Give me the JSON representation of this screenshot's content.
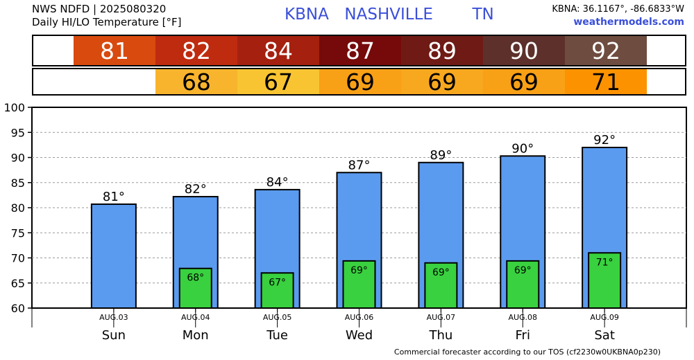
{
  "header": {
    "source_line": "NWS NDFD | 2025080320",
    "product_line": "Daily HI/LO Temperature [°F]",
    "station_line": "KBNA  NASHVILLE     TN",
    "coords": "KBNA: 36.1167°, -86.6833°W",
    "website": "weathermodels.com"
  },
  "footer": "Commercial forecaster according to our TOS (cf2230w0UKBNA0p230)",
  "hi_strip": [
    {
      "value": "81",
      "color": "#d84a0e"
    },
    {
      "value": "82",
      "color": "#bf2b0f"
    },
    {
      "value": "84",
      "color": "#a5200f"
    },
    {
      "value": "87",
      "color": "#760a0a"
    },
    {
      "value": "89",
      "color": "#6f1a14"
    },
    {
      "value": "90",
      "color": "#5e302b"
    },
    {
      "value": "92",
      "color": "#6e4c3f"
    }
  ],
  "lo_strip": [
    {
      "value": "68",
      "color": "#f8b42c"
    },
    {
      "value": "67",
      "color": "#f8c432"
    },
    {
      "value": "69",
      "color": "#f8a016"
    },
    {
      "value": "69",
      "color": "#f8a81e"
    },
    {
      "value": "69",
      "color": "#f8a016"
    },
    {
      "value": "71",
      "color": "#fd9200"
    }
  ],
  "colors": {
    "high_bar": "#5b9bef",
    "low_bar": "#39d13f",
    "axis": "#000000",
    "grid": "#9a9a9a"
  },
  "chart_data": {
    "type": "bar",
    "categories": [
      "Sun",
      "Mon",
      "Tue",
      "Wed",
      "Thu",
      "Fri",
      "Sat"
    ],
    "dates": [
      "AUG.03",
      "AUG.04",
      "AUG.05",
      "AUG.06",
      "AUG.07",
      "AUG.08",
      "AUG.09"
    ],
    "series": [
      {
        "values": [
          80.7,
          82.2,
          83.6,
          87.0,
          89.0,
          90.3,
          92.0
        ],
        "labels": [
          "81°",
          "82°",
          "84°",
          "87°",
          "89°",
          "90°",
          "92°"
        ]
      },
      {
        "values": [
          null,
          67.9,
          67.0,
          69.4,
          69.0,
          69.4,
          71.0
        ],
        "labels": [
          "",
          "68°",
          "67°",
          "69°",
          "69°",
          "69°",
          "71°"
        ]
      }
    ],
    "yticks": [
      60,
      65,
      70,
      75,
      80,
      85,
      90,
      95,
      100
    ],
    "ylim": [
      60,
      100
    ],
    "grid": true,
    "grid_style": "dashed"
  }
}
